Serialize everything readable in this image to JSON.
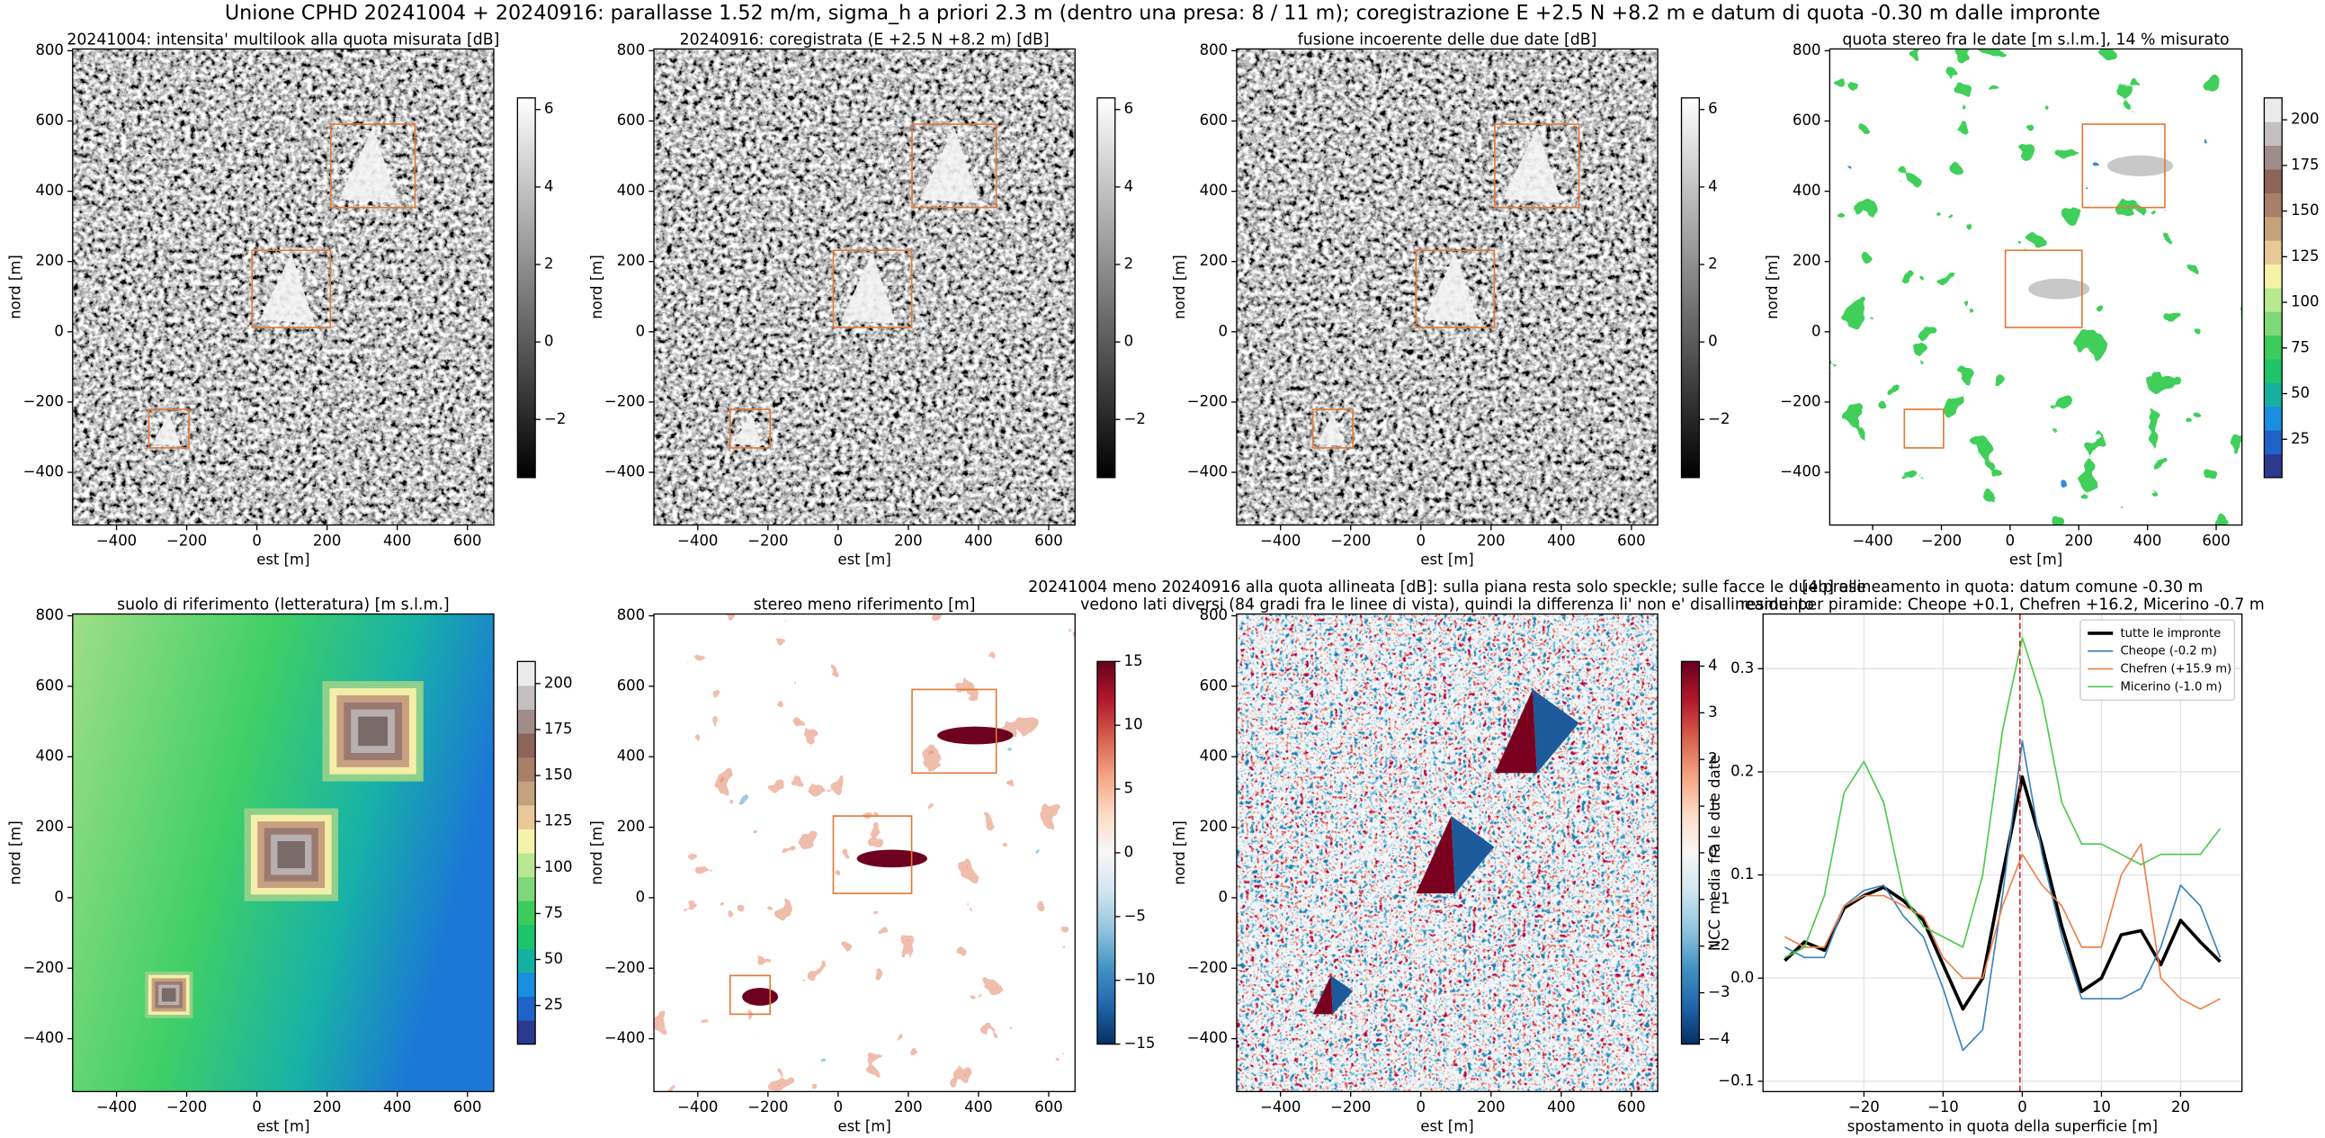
{
  "title": "Unione CPHD 20241004 + 20240916: parallasse 1.52 m/m, sigma_h a priori 2.3 m (dentro una presa: 8 / 11 m); coregistrazione E +2.5 N +8.2 m e datum di quota -0.30 m dalle impronte",
  "chart_data": [
    {
      "type": "image",
      "style": "sar",
      "title": [
        "20241004: intensita' multilook alla quota misurata [dB]"
      ],
      "xlabel": "est [m]",
      "ylabel": "nord [m]",
      "xlim": [
        -525,
        675
      ],
      "ylim": [
        -550,
        805
      ],
      "xticks": [
        {
          "value": -400,
          "label": "−400"
        },
        {
          "value": -200,
          "label": "−200"
        },
        0,
        200,
        400,
        600
      ],
      "yticks": [
        {
          "value": -400,
          "label": "−400"
        },
        {
          "value": -200,
          "label": "−200"
        },
        0,
        200,
        400,
        600,
        800
      ],
      "colorbar": {
        "lim": [
          -3.5,
          6.3
        ],
        "ticks": [
          {
            "value": -2,
            "label": "−2"
          },
          0,
          2,
          4,
          6
        ],
        "colormap": [
          "#000000",
          "#ffffff"
        ],
        "discrete": false
      }
    },
    {
      "type": "image",
      "style": "sar",
      "title": [
        "20240916: coregistrata (E +2.5 N +8.2 m) [dB]"
      ],
      "xlabel": "est [m]",
      "ylabel": "nord [m]",
      "xlim": [
        -525,
        675
      ],
      "ylim": [
        -550,
        805
      ],
      "xticks": [
        {
          "value": -400,
          "label": "−400"
        },
        {
          "value": -200,
          "label": "−200"
        },
        0,
        200,
        400,
        600
      ],
      "yticks": [
        {
          "value": -400,
          "label": "−400"
        },
        {
          "value": -200,
          "label": "−200"
        },
        0,
        200,
        400,
        600,
        800
      ],
      "colorbar": {
        "lim": [
          -3.5,
          6.3
        ],
        "ticks": [
          {
            "value": -2,
            "label": "−2"
          },
          0,
          2,
          4,
          6
        ],
        "colormap": [
          "#000000",
          "#ffffff"
        ],
        "discrete": false
      }
    },
    {
      "type": "image",
      "style": "sar",
      "title": [
        "fusione incoerente delle due date [dB]"
      ],
      "xlabel": "est [m]",
      "ylabel": "nord [m]",
      "xlim": [
        -525,
        675
      ],
      "ylim": [
        -550,
        805
      ],
      "xticks": [
        {
          "value": -400,
          "label": "−400"
        },
        {
          "value": -200,
          "label": "−200"
        },
        0,
        200,
        400,
        600
      ],
      "yticks": [
        {
          "value": -400,
          "label": "−400"
        },
        {
          "value": -200,
          "label": "−200"
        },
        0,
        200,
        400,
        600,
        800
      ],
      "colorbar": {
        "lim": [
          -3.5,
          6.3
        ],
        "ticks": [
          {
            "value": -2,
            "label": "−2"
          },
          0,
          2,
          4,
          6
        ],
        "colormap": [
          "#000000",
          "#ffffff"
        ],
        "discrete": false
      }
    },
    {
      "type": "image",
      "style": "blobs",
      "title": [
        "quota stereo fra le date [m s.l.m.], 14 % misurato"
      ],
      "xlabel": "est [m]",
      "ylabel": "nord [m]",
      "xlim": [
        -525,
        675
      ],
      "ylim": [
        -550,
        805
      ],
      "xticks": [
        {
          "value": -400,
          "label": "−400"
        },
        {
          "value": -200,
          "label": "−200"
        },
        0,
        200,
        400,
        600
      ],
      "yticks": [
        {
          "value": -400,
          "label": "−400"
        },
        {
          "value": -200,
          "label": "−200"
        },
        0,
        200,
        400,
        600,
        800
      ],
      "colorbar": {
        "lim": [
          4,
          212
        ],
        "ticks": [
          25,
          50,
          75,
          100,
          125,
          150,
          175,
          200
        ],
        "colormap": [
          "#2b3a8f",
          "#1f63c9",
          "#1a8ee0",
          "#16b0a0",
          "#1ec46a",
          "#3ccc5c",
          "#7fd87a",
          "#b8e890",
          "#f4f4a8",
          "#e8c898",
          "#c4a27c",
          "#a88068",
          "#8c6458",
          "#a08c88",
          "#c4c0c0",
          "#ecebeb"
        ],
        "discrete": true
      }
    },
    {
      "type": "image",
      "style": "terrain",
      "title": [
        "suolo di riferimento (letteratura) [m s.l.m.]"
      ],
      "xlabel": "est [m]",
      "ylabel": "nord [m]",
      "xlim": [
        -525,
        675
      ],
      "ylim": [
        -550,
        805
      ],
      "xticks": [
        {
          "value": -400,
          "label": "−400"
        },
        {
          "value": -200,
          "label": "−200"
        },
        0,
        200,
        400,
        600
      ],
      "yticks": [
        {
          "value": -400,
          "label": "−400"
        },
        {
          "value": -200,
          "label": "−200"
        },
        0,
        200,
        400,
        600,
        800
      ],
      "colorbar": {
        "lim": [
          4,
          212
        ],
        "ticks": [
          25,
          50,
          75,
          100,
          125,
          150,
          175,
          200
        ],
        "colormap": [
          "#2b3a8f",
          "#1f63c9",
          "#1a8ee0",
          "#16b0a0",
          "#1ec46a",
          "#3ccc5c",
          "#7fd87a",
          "#b8e890",
          "#f4f4a8",
          "#e8c898",
          "#c4a27c",
          "#a88068",
          "#8c6458",
          "#a08c88",
          "#c4c0c0",
          "#ecebeb"
        ],
        "discrete": true
      }
    },
    {
      "type": "image",
      "style": "diffblobs",
      "title": [
        "stereo meno riferimento [m]"
      ],
      "xlabel": "est [m]",
      "ylabel": "nord [m]",
      "xlim": [
        -525,
        675
      ],
      "ylim": [
        -550,
        805
      ],
      "xticks": [
        {
          "value": -400,
          "label": "−400"
        },
        {
          "value": -200,
          "label": "−200"
        },
        0,
        200,
        400,
        600
      ],
      "yticks": [
        {
          "value": -400,
          "label": "−400"
        },
        {
          "value": -200,
          "label": "−200"
        },
        0,
        200,
        400,
        600,
        800
      ],
      "colorbar": {
        "lim": [
          -15,
          15
        ],
        "ticks": [
          {
            "value": -15,
            "label": "−15"
          },
          {
            "value": -10,
            "label": "−10"
          },
          {
            "value": -5,
            "label": "−5"
          },
          0,
          5,
          10,
          15
        ],
        "colormap": [
          "#053061",
          "#2166ac",
          "#4393c3",
          "#92c5de",
          "#d1e5f0",
          "#f7f7f7",
          "#fddbc7",
          "#f4a582",
          "#d6604d",
          "#b2182b",
          "#67001f"
        ],
        "discrete": false
      }
    },
    {
      "type": "image",
      "style": "rdbu",
      "title": [
        "20241004 meno 20240916 alla quota allineata [dB]: sulla piana resta solo speckle; sulle facce le due prese",
        "vedono lati diversi (84 gradi fra le linee di vista), quindi la differenza li' non e' disallineamento"
      ],
      "xlabel": "est [m]",
      "ylabel": "nord [m]",
      "xlim": [
        -525,
        675
      ],
      "ylim": [
        -550,
        805
      ],
      "xticks": [
        {
          "value": -400,
          "label": "−400"
        },
        {
          "value": -200,
          "label": "−200"
        },
        0,
        200,
        400,
        600
      ],
      "yticks": [
        {
          "value": -400,
          "label": "−400"
        },
        {
          "value": -200,
          "label": "−200"
        },
        0,
        200,
        400,
        600,
        800
      ],
      "colorbar": {
        "lim": [
          -4.1,
          4.1
        ],
        "ticks": [
          {
            "value": -4,
            "label": "−4"
          },
          {
            "value": -3,
            "label": "−3"
          },
          {
            "value": -2,
            "label": "−2"
          },
          {
            "value": -1,
            "label": "−1"
          },
          0,
          1,
          2,
          3,
          4
        ],
        "colormap": [
          "#053061",
          "#2166ac",
          "#4393c3",
          "#92c5de",
          "#d1e5f0",
          "#f7f7f7",
          "#fddbc7",
          "#f4a582",
          "#d6604d",
          "#b2182b",
          "#67001f"
        ],
        "discrete": false
      }
    },
    {
      "type": "line",
      "title": [
        "[4b] allineamento in quota: datum comune -0.30 m",
        "residui per piramide: Cheope +0.1, Chefren +16.2, Micerino -0.7 m"
      ],
      "xlabel": "spostamento in quota della superficie [m]",
      "ylabel": "NCC media fra le due date",
      "xlim": [
        -32.75,
        27.75
      ],
      "ylim": [
        -0.11,
        0.353
      ],
      "xticks": [
        {
          "value": -20,
          "label": "−20"
        },
        {
          "value": -10,
          "label": "−10"
        },
        0,
        10,
        20
      ],
      "yticks": [
        {
          "value": -0.1,
          "label": "−0.1"
        },
        {
          "value": 0,
          "label": "0.0"
        },
        0.1,
        0.2,
        0.3
      ],
      "grid": true,
      "legend": "upper right",
      "vline": -0.3,
      "vline_color": "#d62728",
      "x": [
        -30,
        -27.5,
        -25,
        -22.5,
        -20,
        -17.5,
        -15,
        -12.5,
        -10,
        -7.5,
        -5,
        -2.5,
        0,
        2.5,
        5,
        7.5,
        10,
        12.5,
        15,
        17.5,
        20,
        22.5,
        25
      ],
      "series": [
        {
          "name": "tutte le impronte",
          "color": "#000000",
          "width": 2.2,
          "values": [
            0.017,
            0.035,
            0.027,
            0.068,
            0.08,
            0.088,
            0.075,
            0.056,
            0.013,
            -0.03,
            0.0,
            0.1,
            0.195,
            0.128,
            0.05,
            -0.013,
            0.0,
            0.042,
            0.046,
            0.013,
            0.056,
            0.035,
            0.016
          ]
        },
        {
          "name": "Cheope (-0.2 m)",
          "color": "#3b82b8",
          "width": 1,
          "values": [
            0.03,
            0.02,
            0.02,
            0.07,
            0.085,
            0.09,
            0.06,
            0.04,
            -0.01,
            -0.07,
            -0.05,
            0.08,
            0.23,
            0.12,
            0.04,
            -0.02,
            -0.02,
            -0.02,
            -0.01,
            0.03,
            0.09,
            0.07,
            0.02
          ]
        },
        {
          "name": "Chefren (+15.9 m)",
          "color": "#f07f4a",
          "width": 1,
          "values": [
            0.04,
            0.03,
            0.03,
            0.07,
            0.08,
            0.08,
            0.07,
            0.06,
            0.02,
            0.0,
            0.0,
            0.07,
            0.12,
            0.09,
            0.07,
            0.03,
            0.03,
            0.1,
            0.13,
            0.0,
            -0.02,
            -0.03,
            -0.02
          ]
        },
        {
          "name": "Micerino (-1.0 m)",
          "color": "#4cc94c",
          "width": 1,
          "values": [
            0.02,
            0.03,
            0.08,
            0.18,
            0.21,
            0.17,
            0.08,
            0.05,
            0.04,
            0.03,
            0.1,
            0.24,
            0.33,
            0.27,
            0.17,
            0.13,
            0.13,
            0.12,
            0.11,
            0.12,
            0.12,
            0.12,
            0.145
          ]
        }
      ]
    }
  ]
}
